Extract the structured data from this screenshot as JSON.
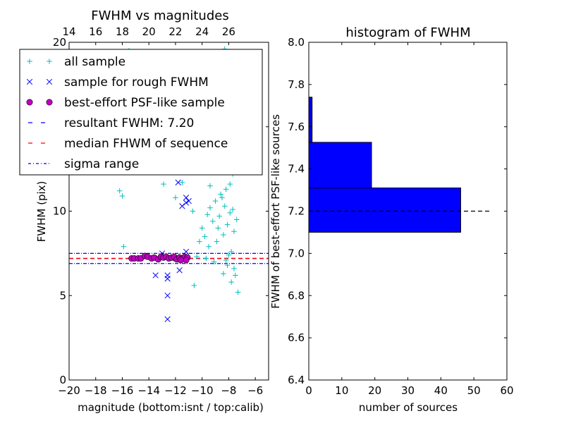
{
  "chart_data": [
    {
      "type": "scatter",
      "title": "FWHM vs magnitudes",
      "xlabel": "magnitude (bottom:isnt / top:calib)",
      "ylabel": "FWHM (pix)",
      "xlim": [
        -20,
        -5
      ],
      "ylim": [
        0,
        20
      ],
      "x_ticks": [
        -20,
        -18,
        -16,
        -14,
        -12,
        -10,
        -8,
        -6
      ],
      "x_tick_labels": [
        "−20",
        "−18",
        "−16",
        "−14",
        "−12",
        "−10",
        "−8",
        "−6"
      ],
      "y_ticks": [
        0,
        5,
        10,
        15,
        20
      ],
      "y_tick_labels": [
        "0",
        "5",
        "10",
        "15",
        "20"
      ],
      "top_axis_offset": 34,
      "top_ticks": [
        14,
        16,
        18,
        20,
        22,
        24,
        26
      ],
      "top_tick_labels": [
        "14",
        "16",
        "18",
        "20",
        "22",
        "24",
        "26"
      ],
      "legend_position": "upper-left",
      "legend": [
        {
          "label": "all sample",
          "marker": "plus",
          "color": "#00bfbf"
        },
        {
          "label": "sample for rough FWHM",
          "marker": "x",
          "color": "#0000ff"
        },
        {
          "label": "best-effort PSF-like sample",
          "marker": "circle",
          "color": "#bf00bf"
        },
        {
          "label": "resultant FWHM: 7.20",
          "marker": "dashed",
          "color": "#0000ff"
        },
        {
          "label": "median FHWM of sequence",
          "marker": "dashed",
          "color": "#ff0000"
        },
        {
          "label": "sigma range",
          "marker": "dashdot",
          "color": "#0000ff"
        }
      ],
      "series": [
        {
          "name": "all sample",
          "marker": "plus",
          "color": "#00bfbf",
          "points": [
            [
              -16.2,
              11.2
            ],
            [
              -16.0,
              10.9
            ],
            [
              -15.9,
              7.9
            ],
            [
              -15.5,
              19.5
            ],
            [
              -15.4,
              19.3
            ],
            [
              -13.2,
              12.3
            ],
            [
              -12.9,
              11.6
            ],
            [
              -12.0,
              10.8
            ],
            [
              -11.5,
              11.7
            ],
            [
              -10.7,
              10.0
            ],
            [
              -10.6,
              5.6
            ],
            [
              -10.2,
              8.2
            ],
            [
              -10.0,
              9.0
            ],
            [
              -9.8,
              8.5
            ],
            [
              -9.6,
              9.8
            ],
            [
              -9.5,
              7.9
            ],
            [
              -9.4,
              11.5
            ],
            [
              -9.2,
              9.4
            ],
            [
              -9.0,
              10.6
            ],
            [
              -8.9,
              8.2
            ],
            [
              -8.8,
              12.4
            ],
            [
              -8.7,
              9.7
            ],
            [
              -8.6,
              11.0
            ],
            [
              -8.5,
              13.8
            ],
            [
              -8.4,
              8.6
            ],
            [
              -8.3,
              10.3
            ],
            [
              -8.2,
              12.9
            ],
            [
              -8.1,
              9.2
            ],
            [
              -8.0,
              14.7
            ],
            [
              -7.9,
              11.6
            ],
            [
              -7.8,
              7.6
            ],
            [
              -7.7,
              10.1
            ],
            [
              -7.6,
              8.8
            ],
            [
              -7.5,
              6.2
            ],
            [
              -7.4,
              9.5
            ],
            [
              -7.3,
              5.2
            ],
            [
              -8.1,
              6.8
            ],
            [
              -7.9,
              15.8
            ],
            [
              -8.3,
              16.9
            ],
            [
              -8.0,
              17.8
            ],
            [
              -8.6,
              15.1
            ],
            [
              -8.9,
              13.2
            ],
            [
              -9.3,
              12.7
            ],
            [
              -7.7,
              12.2
            ],
            [
              -8.2,
              7.1
            ],
            [
              -7.6,
              6.6
            ],
            [
              -8.4,
              6.3
            ],
            [
              -7.8,
              5.8
            ],
            [
              -8.0,
              7.4
            ],
            [
              -9.1,
              7.0
            ],
            [
              -9.7,
              7.2
            ],
            [
              -10.4,
              7.3
            ],
            [
              -8.7,
              13.9
            ],
            [
              -8.5,
              10.8
            ],
            [
              -7.9,
              9.9
            ],
            [
              -8.2,
              11.3
            ],
            [
              -8.8,
              9.0
            ],
            [
              -9.4,
              10.2
            ],
            [
              -8.3,
              19.6
            ],
            [
              -8.1,
              18.4
            ]
          ]
        },
        {
          "name": "sample for rough FWHM",
          "marker": "x",
          "color": "#0000ff",
          "points": [
            [
              -11.8,
              11.7
            ],
            [
              -11.5,
              10.3
            ],
            [
              -11.2,
              10.8
            ],
            [
              -11.0,
              10.6
            ],
            [
              -11.2,
              10.5
            ],
            [
              -12.6,
              6.0
            ],
            [
              -12.6,
              6.2
            ],
            [
              -12.6,
              5.0
            ],
            [
              -12.6,
              3.6
            ],
            [
              -13.5,
              6.2
            ],
            [
              -11.2,
              7.6
            ],
            [
              -12.3,
              7.2
            ],
            [
              -11.7,
              6.5
            ],
            [
              -13.0,
              7.5
            ],
            [
              -11.9,
              7.3
            ]
          ]
        },
        {
          "name": "best-effort PSF-like sample",
          "marker": "circle",
          "color": "#bf00bf",
          "points": [
            [
              -15.3,
              7.2
            ],
            [
              -15.1,
              7.2
            ],
            [
              -14.8,
              7.2
            ],
            [
              -14.6,
              7.2
            ],
            [
              -14.3,
              7.35
            ],
            [
              -14.1,
              7.3
            ],
            [
              -13.8,
              7.2
            ],
            [
              -13.6,
              7.25
            ],
            [
              -13.3,
              7.15
            ],
            [
              -13.1,
              7.3
            ],
            [
              -12.9,
              7.25
            ],
            [
              -12.7,
              7.3
            ],
            [
              -12.5,
              7.2
            ],
            [
              -12.3,
              7.25
            ],
            [
              -12.1,
              7.3
            ],
            [
              -11.9,
              7.15
            ],
            [
              -11.7,
              7.25
            ],
            [
              -11.5,
              7.2
            ],
            [
              -11.3,
              7.3
            ],
            [
              -11.1,
              7.25
            ],
            [
              -11.2,
              7.1
            ],
            [
              -11.6,
              7.1
            ]
          ]
        }
      ],
      "hlines": [
        {
          "name": "resultant FWHM: 7.20",
          "y": 7.2,
          "style": "dashed",
          "color": "#0000ff"
        },
        {
          "name": "median FHWM of sequence",
          "y": 7.2,
          "style": "dashed",
          "color": "#ff0000"
        },
        {
          "name": "sigma range",
          "y": 7.5,
          "style": "dashdot",
          "color": "#0000ff"
        },
        {
          "name": "sigma range",
          "y": 6.9,
          "style": "dashdot",
          "color": "#0000ff"
        }
      ]
    },
    {
      "type": "bar",
      "orientation": "horizontal",
      "title": "histogram of FWHM",
      "xlabel": "number of sources",
      "ylabel": "FWHM of best-effort PSF-like sources",
      "xlim": [
        0,
        60
      ],
      "ylim": [
        6.4,
        8.0
      ],
      "x_ticks": [
        0,
        10,
        20,
        30,
        40,
        50,
        60
      ],
      "x_tick_labels": [
        "0",
        "10",
        "20",
        "30",
        "40",
        "50",
        "60"
      ],
      "y_ticks": [
        6.4,
        6.6,
        6.8,
        7.0,
        7.2,
        7.4,
        7.6,
        7.8,
        8.0
      ],
      "y_tick_labels": [
        "6.4",
        "6.6",
        "6.8",
        "7.0",
        "7.2",
        "7.4",
        "7.6",
        "7.8",
        "8.0"
      ],
      "bar_color": "#0000ff",
      "bins": [
        {
          "y0": 7.1,
          "y1": 7.31,
          "count": 46
        },
        {
          "y0": 7.31,
          "y1": 7.526,
          "count": 19
        },
        {
          "y0": 7.526,
          "y1": 7.74,
          "count": 1
        }
      ],
      "hline": {
        "y": 7.2,
        "x0": 0,
        "x1": 55,
        "style": "dashed",
        "color": "#000000"
      }
    }
  ]
}
